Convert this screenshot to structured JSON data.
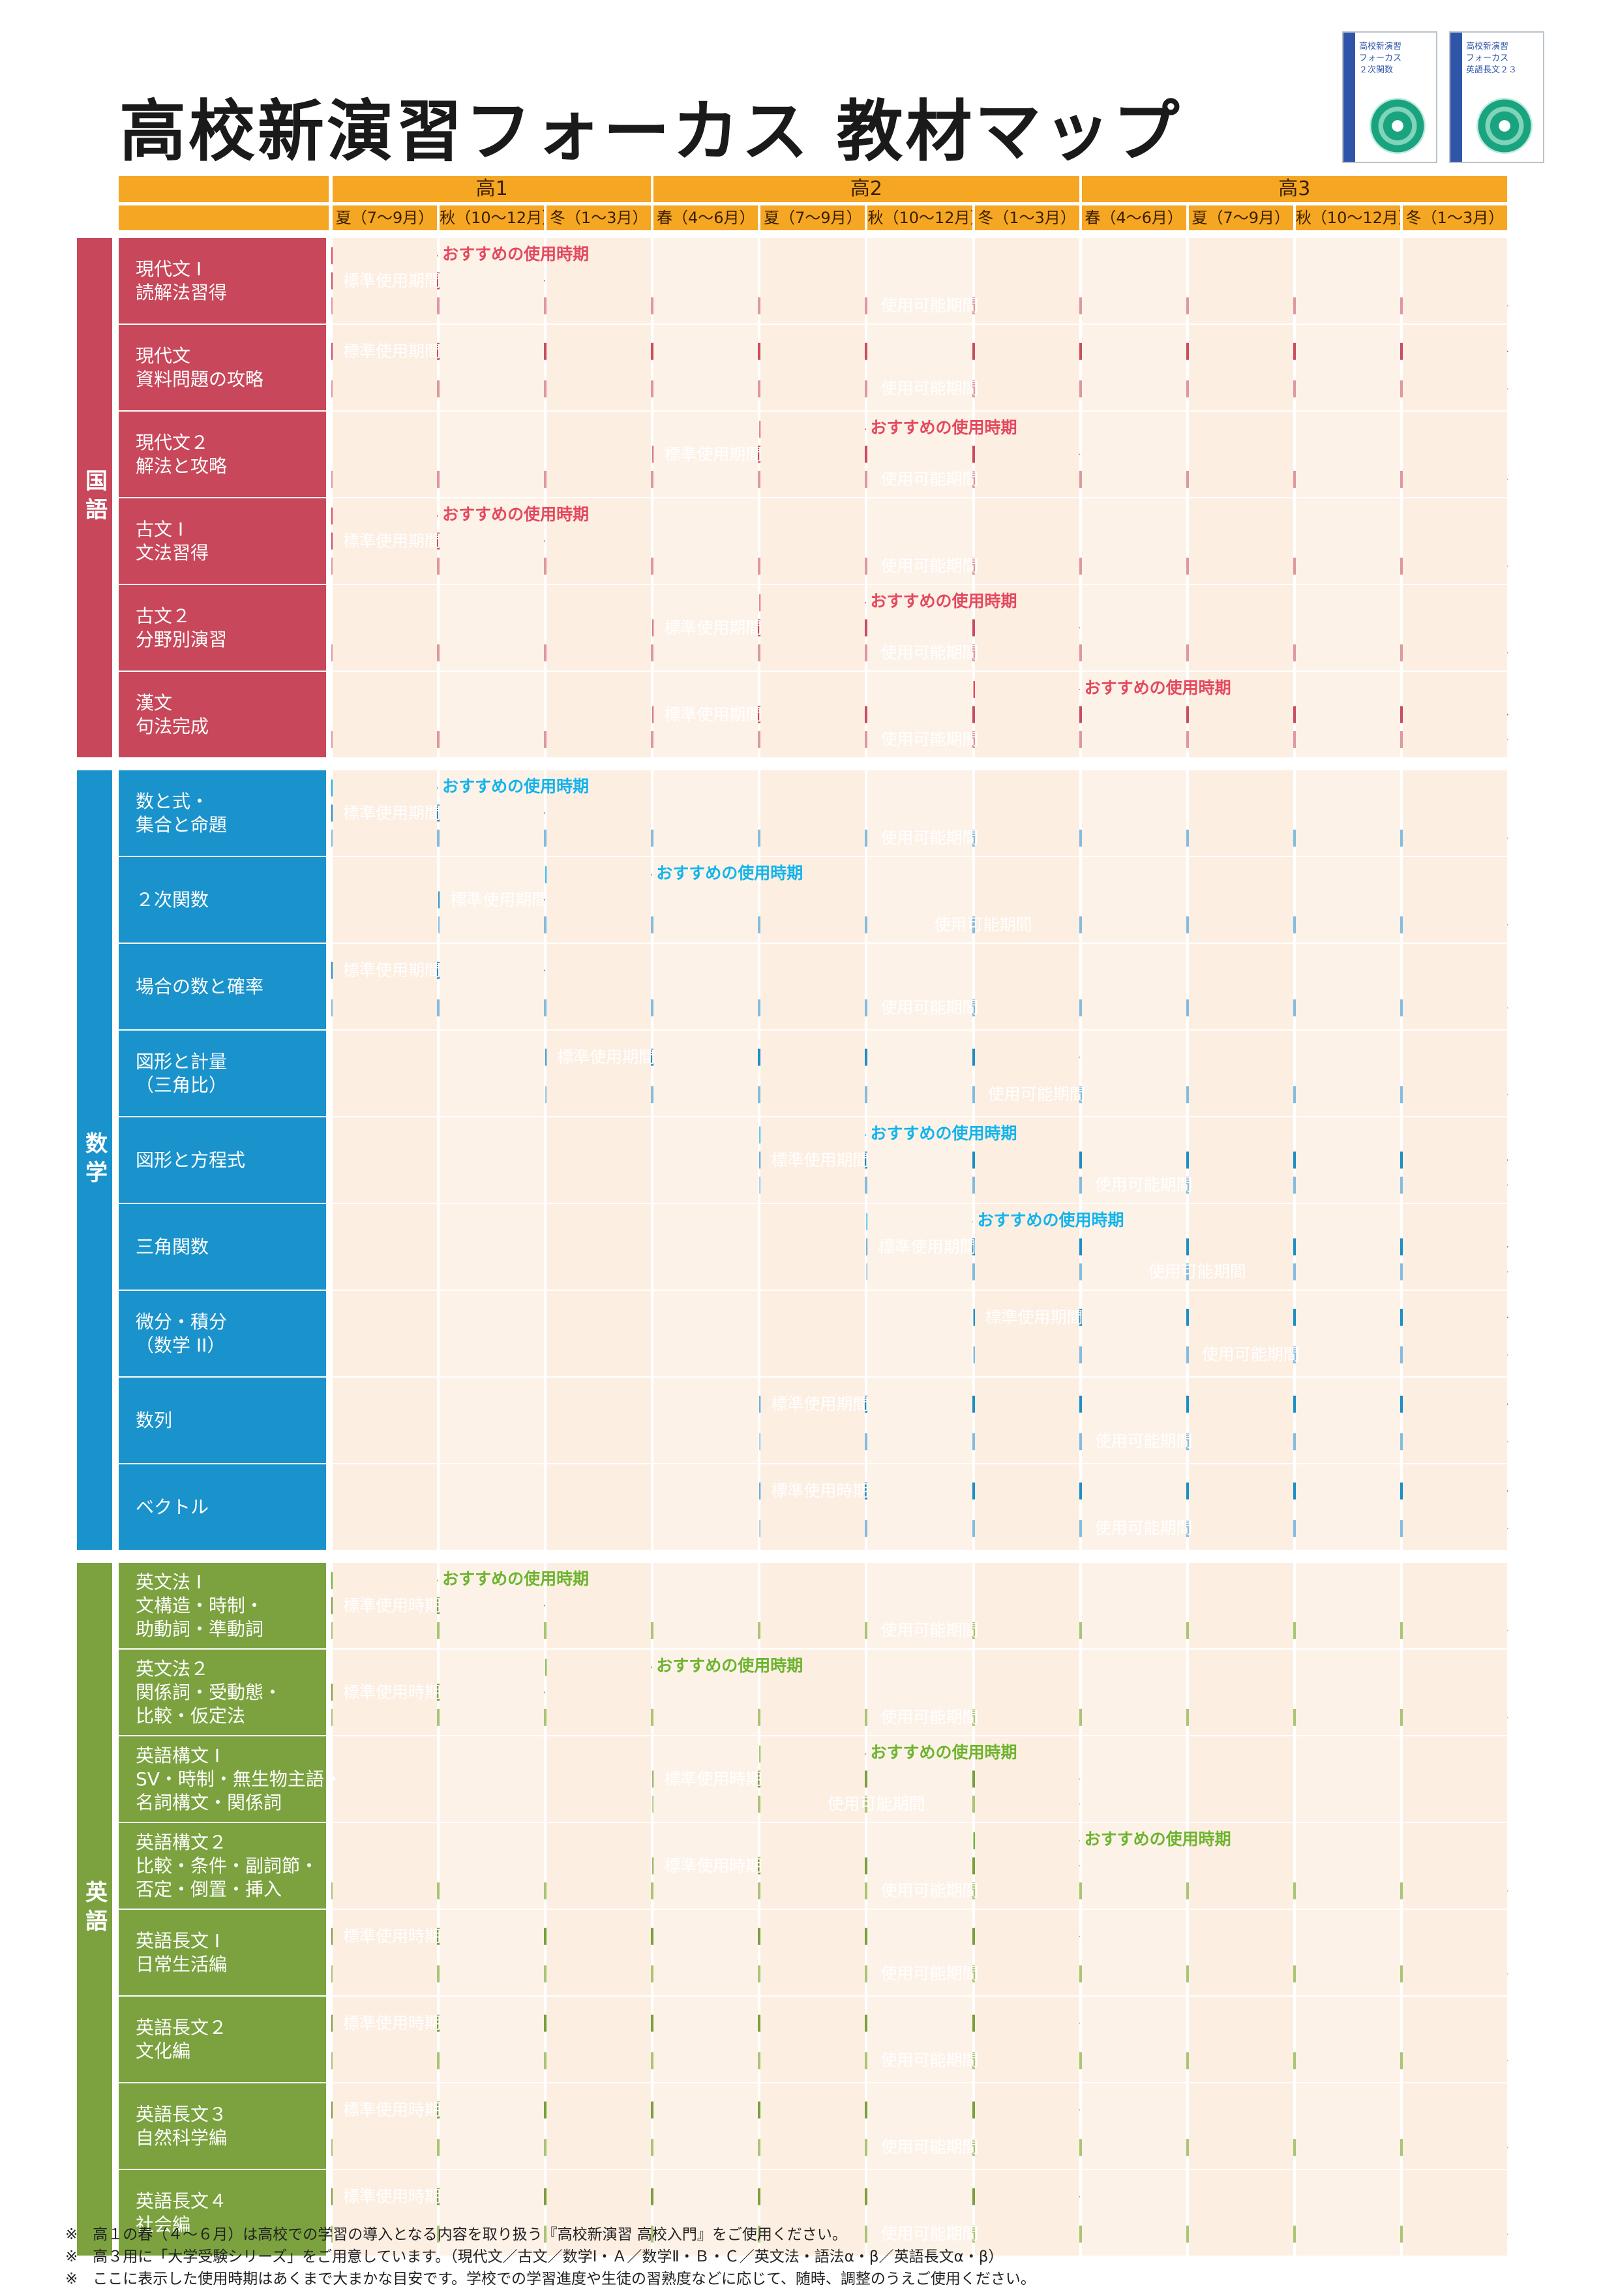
{
  "title": "高校新演習フォーカス 教材マップ",
  "covers": [
    {
      "line1": "高校新演習",
      "line2": "フォーカス",
      "line3": "２次関数"
    },
    {
      "line1": "高校新演習",
      "line2": "フォーカス",
      "line3": "英語長文２３"
    }
  ],
  "years": [
    "高1",
    "高2",
    "高3"
  ],
  "quarters": [
    "夏（7～9月）",
    "秋（10～12月）",
    "冬（1～3月）",
    "春（4～6月）",
    "夏（7～9月）",
    "秋（10～12月）",
    "冬（1～3月）",
    "春（4～6月）",
    "夏（7～9月）",
    "秋（10～12月）",
    "冬（1～3月）"
  ],
  "legend": {
    "recommended": "おすすめの使用時期",
    "standard_kikan": "標準使用期間",
    "standard_jiki": "標準使用時期",
    "usable": "使用可能期間"
  },
  "colors": {
    "kokugo": {
      "label": "#c8475a",
      "rec": "#e4495e",
      "std": "#c94d62",
      "use": "#dd98a0"
    },
    "sugaku": {
      "label": "#1a93cc",
      "rec": "#12b4ec",
      "std": "#1f8ec6",
      "use": "#84bcdf"
    },
    "eigo": {
      "label": "#7ba23f",
      "rec": "#6db42e",
      "std": "#7a9f3f",
      "use": "#a9c576"
    },
    "header": "#f5a623",
    "bg_even": "#fdeee2",
    "bg_odd": "#fdf2e8"
  },
  "categories": [
    {
      "name": "国語",
      "key": "kokugo",
      "books": [
        {
          "label": "現代文 I\n読解法習得",
          "rec": [
            0,
            1
          ],
          "std": [
            0,
            2
          ],
          "std_text": "標準使用期間",
          "use": [
            0,
            11
          ]
        },
        {
          "label": "現代文\n資料問題の攻略",
          "rec": null,
          "std": [
            0,
            11
          ],
          "std_text": "標準使用期間",
          "use": [
            0,
            11
          ]
        },
        {
          "label": "現代文２\n解法と攻略",
          "rec": [
            4,
            5
          ],
          "std": [
            3,
            7
          ],
          "std_text": "標準使用期間",
          "use": [
            0,
            11
          ]
        },
        {
          "label": "古文 I\n文法習得",
          "rec": [
            0,
            1
          ],
          "std": [
            0,
            2
          ],
          "std_text": "標準使用期間",
          "use": [
            0,
            11
          ]
        },
        {
          "label": "古文２\n分野別演習",
          "rec": [
            4,
            5
          ],
          "std": [
            3,
            7
          ],
          "std_text": "標準使用期間",
          "use": [
            0,
            11
          ]
        },
        {
          "label": "漢文\n句法完成",
          "rec": [
            6,
            7
          ],
          "std": [
            3,
            11
          ],
          "std_text": "標準使用期間",
          "use": [
            0,
            11
          ]
        }
      ]
    },
    {
      "name": "数学",
      "key": "sugaku",
      "books": [
        {
          "label": "数と式・\n集合と命題",
          "rec": [
            0,
            1
          ],
          "std": [
            0,
            2
          ],
          "std_text": "標準使用期間",
          "use": [
            0,
            11
          ]
        },
        {
          "label": "２次関数",
          "rec": [
            2,
            3
          ],
          "std": [
            1,
            2
          ],
          "std_text": "標準使用期間",
          "use": [
            1,
            11
          ]
        },
        {
          "label": "場合の数と確率",
          "rec": null,
          "std": [
            0,
            2
          ],
          "std_text": "標準使用期間",
          "use": [
            0,
            11
          ]
        },
        {
          "label": "図形と計量\n（三角比）",
          "rec": null,
          "std": [
            2,
            7
          ],
          "std_text": "標準使用期間",
          "use": [
            2,
            11
          ]
        },
        {
          "label": "図形と方程式",
          "rec": [
            4,
            5
          ],
          "std": [
            4,
            11
          ],
          "std_text": "標準使用期間",
          "use": [
            4,
            11
          ]
        },
        {
          "label": "三角関数",
          "rec": [
            5,
            6
          ],
          "std": [
            5,
            11
          ],
          "std_text": "標準使用期間",
          "use": [
            5,
            11
          ]
        },
        {
          "label": "微分・積分\n（数学 II）",
          "rec": null,
          "std": [
            6,
            11
          ],
          "std_text": "標準使用期間",
          "use": [
            6,
            11
          ]
        },
        {
          "label": "数列",
          "rec": null,
          "std": [
            4,
            11
          ],
          "std_text": "標準使用期間",
          "use": [
            4,
            11
          ]
        },
        {
          "label": "ベクトル",
          "rec": null,
          "std": [
            4,
            11
          ],
          "std_text": "標準使用時期",
          "use": [
            4,
            11
          ]
        }
      ]
    },
    {
      "name": "英語",
      "key": "eigo",
      "books": [
        {
          "label": "英文法 I\n文構造・時制・\n助動詞・準動詞",
          "rec": [
            0,
            1
          ],
          "std": [
            0,
            2
          ],
          "std_text": "標準使用時期",
          "use": [
            0,
            11
          ]
        },
        {
          "label": "英文法２\n関係詞・受動態・\n比較・仮定法",
          "rec": [
            2,
            3
          ],
          "std": [
            0,
            2
          ],
          "std_text": "標準使用時期",
          "use": [
            0,
            11
          ]
        },
        {
          "label": "英語構文 I\nSV・時制・無生物主語・\n名詞構文・関係詞",
          "rec": [
            4,
            5
          ],
          "std": [
            3,
            7
          ],
          "std_text": "標準使用時期",
          "use": [
            3,
            7
          ]
        },
        {
          "label": "英語構文２\n比較・条件・副詞節・\n否定・倒置・挿入",
          "rec": [
            6,
            7
          ],
          "std": [
            3,
            7
          ],
          "std_text": "標準使用時期",
          "use": [
            0,
            11
          ]
        },
        {
          "label": "英語長文 I\n日常生活編",
          "rec": null,
          "std": [
            0,
            7
          ],
          "std_text": "標準使用時期",
          "use": [
            0,
            11
          ]
        },
        {
          "label": "英語長文２\n文化編",
          "rec": null,
          "std": [
            0,
            7
          ],
          "std_text": "標準使用時期",
          "use": [
            0,
            11
          ]
        },
        {
          "label": "英語長文３\n自然科学編",
          "rec": null,
          "std": [
            0,
            7
          ],
          "std_text": "標準使用時期",
          "use": [
            0,
            11
          ]
        },
        {
          "label": "英語長文４\n社会編",
          "rec": null,
          "std": [
            0,
            7
          ],
          "std_text": "標準使用時期",
          "use": [
            0,
            11
          ]
        }
      ]
    }
  ],
  "footnotes": [
    "※　高１の春（４～６月）は高校での学習の導入となる内容を取り扱う『高校新演習 高校入門』をご使用ください。",
    "※　高３用に「大学受験シリーズ」をご用意しています。（現代文／古文／数学Ⅰ・Ａ／数学Ⅱ・Ｂ・Ｃ／英文法・語法α・β／英語長文α・β）",
    "※　ここに表示した使用時期はあくまで大まかな目安です。学校での学習進度や生徒の習熟度などに応じて、随時、調整のうえご使用ください。"
  ]
}
